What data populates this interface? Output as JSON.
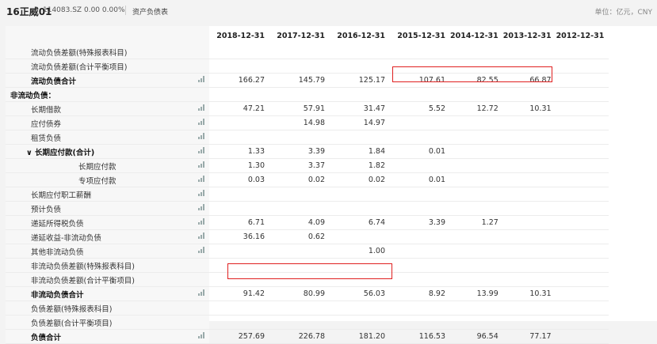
{
  "header": {
    "title": "16正威01",
    "code": "114083.SZ",
    "price": "0.00",
    "change": "0.00%",
    "report_name": "资产负债表",
    "unit": "单位：亿元，CNY"
  },
  "columns": [
    "2018-12-31",
    "2017-12-31",
    "2016-12-31",
    "2015-12-31",
    "2014-12-31",
    "2013-12-31",
    "2012-12-31"
  ],
  "rows": [
    {
      "label": "流动负债差额(特殊报表科目)",
      "indent": 1,
      "bold": false,
      "chart": false,
      "values": [
        "",
        "",
        "",
        "",
        "",
        "",
        ""
      ]
    },
    {
      "label": "流动负债差额(合计平衡项目)",
      "indent": 1,
      "bold": false,
      "chart": false,
      "values": [
        "",
        "",
        "",
        "",
        "",
        "",
        ""
      ]
    },
    {
      "label": "流动负债合计",
      "indent": 1,
      "bold": true,
      "chart": true,
      "values": [
        "166.27",
        "145.79",
        "125.17",
        "107.61",
        "82.55",
        "66.87",
        ""
      ]
    },
    {
      "label": "非流动负债：",
      "indent": 0,
      "bold": true,
      "chart": false,
      "values": [
        "",
        "",
        "",
        "",
        "",
        "",
        ""
      ]
    },
    {
      "label": "长期借款",
      "indent": 1,
      "bold": false,
      "chart": true,
      "values": [
        "47.21",
        "57.91",
        "31.47",
        "5.52",
        "12.72",
        "10.31",
        ""
      ]
    },
    {
      "label": "应付债券",
      "indent": 1,
      "bold": false,
      "chart": true,
      "values": [
        "",
        "14.98",
        "14.97",
        "",
        "",
        "",
        ""
      ]
    },
    {
      "label": "租赁负债",
      "indent": 1,
      "bold": false,
      "chart": true,
      "values": [
        "",
        "",
        "",
        "",
        "",
        "",
        ""
      ]
    },
    {
      "label": "∨ 长期应付款(合计)",
      "indent": 3,
      "bold": true,
      "chart": true,
      "values": [
        "1.33",
        "3.39",
        "1.84",
        "0.01",
        "",
        "",
        ""
      ]
    },
    {
      "label": "长期应付款",
      "indent": 2,
      "bold": false,
      "chart": true,
      "values": [
        "1.30",
        "3.37",
        "1.82",
        "",
        "",
        "",
        ""
      ]
    },
    {
      "label": "专项应付款",
      "indent": 2,
      "bold": false,
      "chart": true,
      "values": [
        "0.03",
        "0.02",
        "0.02",
        "0.01",
        "",
        "",
        ""
      ]
    },
    {
      "label": "长期应付职工薪酬",
      "indent": 1,
      "bold": false,
      "chart": true,
      "values": [
        "",
        "",
        "",
        "",
        "",
        "",
        ""
      ]
    },
    {
      "label": "预计负债",
      "indent": 1,
      "bold": false,
      "chart": true,
      "values": [
        "",
        "",
        "",
        "",
        "",
        "",
        ""
      ]
    },
    {
      "label": "递延所得税负债",
      "indent": 1,
      "bold": false,
      "chart": true,
      "values": [
        "6.71",
        "4.09",
        "6.74",
        "3.39",
        "1.27",
        "",
        ""
      ]
    },
    {
      "label": "递延收益-非流动负债",
      "indent": 1,
      "bold": false,
      "chart": true,
      "values": [
        "36.16",
        "0.62",
        "",
        "",
        "",
        "",
        ""
      ]
    },
    {
      "label": "其他非流动负债",
      "indent": 1,
      "bold": false,
      "chart": true,
      "values": [
        "",
        "",
        "1.00",
        "",
        "",
        "",
        ""
      ]
    },
    {
      "label": "非流动负债差额(特殊报表科目)",
      "indent": 1,
      "bold": false,
      "chart": false,
      "values": [
        "",
        "",
        "",
        "",
        "",
        "",
        ""
      ]
    },
    {
      "label": "非流动负债差额(合计平衡项目)",
      "indent": 1,
      "bold": false,
      "chart": false,
      "values": [
        "",
        "",
        "",
        "",
        "",
        "",
        ""
      ]
    },
    {
      "label": "非流动负债合计",
      "indent": 1,
      "bold": true,
      "chart": true,
      "values": [
        "91.42",
        "80.99",
        "56.03",
        "8.92",
        "13.99",
        "10.31",
        ""
      ]
    },
    {
      "label": "负债差额(特殊报表科目)",
      "indent": 1,
      "bold": false,
      "chart": false,
      "values": [
        "",
        "",
        "",
        "",
        "",
        "",
        ""
      ]
    },
    {
      "label": "负债差额(合计平衡项目)",
      "indent": 1,
      "bold": false,
      "chart": false,
      "values": [
        "",
        "",
        "",
        "",
        "",
        "",
        ""
      ]
    },
    {
      "label": "负债合计",
      "indent": 1,
      "bold": true,
      "chart": true,
      "values": [
        "257.69",
        "226.78",
        "181.20",
        "116.53",
        "96.54",
        "77.17",
        ""
      ]
    }
  ],
  "highlight_color": "#e02020"
}
